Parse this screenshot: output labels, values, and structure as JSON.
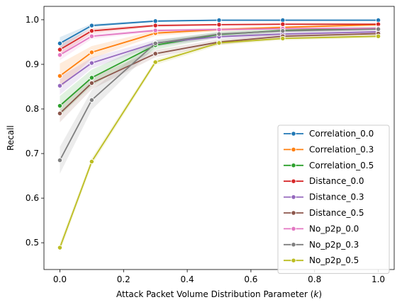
{
  "chart_data": {
    "type": "line",
    "xlabel": "Attack Packet Volume Distribution Parameter (",
    "xlabel_var": "k",
    "xlabel_close": ")",
    "ylabel": "Recall",
    "xlim": [
      -0.05,
      1.05
    ],
    "ylim": [
      0.44,
      1.03
    ],
    "xticks": [
      0.0,
      0.2,
      0.4,
      0.6,
      0.8,
      1.0
    ],
    "xtick_labels": [
      "0.0",
      "0.2",
      "0.4",
      "0.6",
      "0.8",
      "1.0"
    ],
    "yticks": [
      0.5,
      0.6,
      0.7,
      0.8,
      0.9,
      1.0
    ],
    "ytick_labels": [
      "0.5",
      "0.6",
      "0.7",
      "0.8",
      "0.9",
      "1.0"
    ],
    "grid": false,
    "legend_position": "lower-right",
    "x": [
      0.0,
      0.1,
      0.3,
      0.5,
      0.7,
      1.0
    ],
    "series": [
      {
        "name": "Correlation_0.0",
        "color": "#1f77b4",
        "values": [
          0.947,
          0.987,
          0.997,
          0.999,
          0.999,
          0.999
        ],
        "band": [
          0.014,
          0.004,
          0.002,
          0.001,
          0.001,
          0.001
        ]
      },
      {
        "name": "Correlation_0.3",
        "color": "#ff7f0e",
        "values": [
          0.874,
          0.927,
          0.97,
          0.978,
          0.983,
          0.989
        ],
        "band": [
          0.028,
          0.014,
          0.006,
          0.004,
          0.003,
          0.003
        ]
      },
      {
        "name": "Correlation_0.5",
        "color": "#2ca02c",
        "values": [
          0.807,
          0.87,
          0.943,
          0.967,
          0.976,
          0.981
        ],
        "band": [
          0.022,
          0.018,
          0.01,
          0.006,
          0.004,
          0.004
        ]
      },
      {
        "name": "Distance_0.0",
        "color": "#d62728",
        "values": [
          0.933,
          0.975,
          0.987,
          0.989,
          0.99,
          0.99
        ],
        "band": [
          0.012,
          0.006,
          0.003,
          0.002,
          0.002,
          0.002
        ]
      },
      {
        "name": "Distance_0.3",
        "color": "#9467bd",
        "values": [
          0.852,
          0.903,
          0.948,
          0.962,
          0.968,
          0.973
        ],
        "band": [
          0.02,
          0.012,
          0.007,
          0.005,
          0.004,
          0.004
        ]
      },
      {
        "name": "Distance_0.5",
        "color": "#8c564b",
        "values": [
          0.79,
          0.858,
          0.924,
          0.95,
          0.963,
          0.969
        ],
        "band": [
          0.02,
          0.014,
          0.008,
          0.006,
          0.005,
          0.004
        ]
      },
      {
        "name": "No_p2p_0.0",
        "color": "#e377c2",
        "values": [
          0.921,
          0.963,
          0.976,
          0.978,
          0.98,
          0.981
        ],
        "band": [
          0.012,
          0.006,
          0.003,
          0.003,
          0.002,
          0.002
        ]
      },
      {
        "name": "No_p2p_0.3",
        "color": "#7f7f7f",
        "values": [
          0.685,
          0.82,
          0.947,
          0.968,
          0.975,
          0.979
        ],
        "band": [
          0.03,
          0.022,
          0.008,
          0.005,
          0.004,
          0.003
        ]
      },
      {
        "name": "No_p2p_0.5",
        "color": "#bcbd22",
        "values": [
          0.489,
          0.682,
          0.905,
          0.948,
          0.958,
          0.963
        ],
        "band": [
          0.01,
          0.008,
          0.006,
          0.005,
          0.004,
          0.004
        ]
      }
    ]
  }
}
